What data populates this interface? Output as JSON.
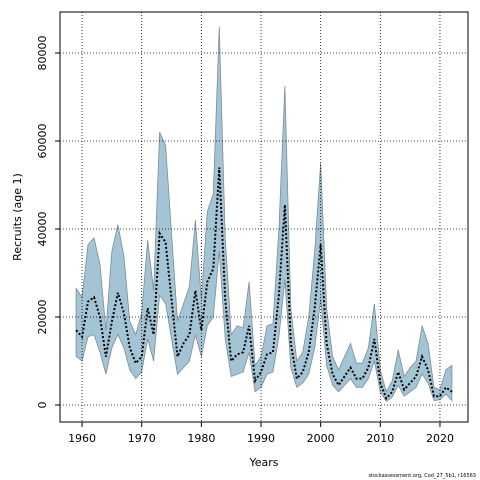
{
  "chart_data": {
    "type": "line",
    "xlabel": "Years",
    "ylabel": "Recruits (age 1)",
    "source": "stockassessment.org, Cod_27_5b1, r16563",
    "x": [
      1959,
      1960,
      1961,
      1962,
      1963,
      1964,
      1965,
      1966,
      1967,
      1968,
      1969,
      1970,
      1971,
      1972,
      1973,
      1974,
      1975,
      1976,
      1977,
      1978,
      1979,
      1980,
      1981,
      1982,
      1983,
      1984,
      1985,
      1986,
      1987,
      1988,
      1989,
      1990,
      1991,
      1992,
      1993,
      1994,
      1995,
      1996,
      1997,
      1998,
      1999,
      2000,
      2001,
      2002,
      2003,
      2004,
      2005,
      2006,
      2007,
      2008,
      2009,
      2010,
      2011,
      2012,
      2013,
      2014,
      2015,
      2016,
      2017,
      2018,
      2019,
      2020,
      2021,
      2022
    ],
    "series": [
      {
        "color": "#000000",
        "values": [
          17000,
          15500,
          23500,
          24500,
          20000,
          11000,
          19000,
          25500,
          21000,
          13000,
          9500,
          11000,
          22000,
          16000,
          39000,
          37000,
          24000,
          11000,
          14000,
          16000,
          26000,
          17000,
          28000,
          31000,
          54000,
          24000,
          10000,
          11500,
          12000,
          18000,
          5500,
          7500,
          11500,
          12000,
          25000,
          45500,
          14000,
          6000,
          7500,
          12000,
          22000,
          36500,
          14000,
          7000,
          4500,
          6500,
          8500,
          6000,
          6000,
          8500,
          15000,
          5000,
          1500,
          3000,
          7500,
          3500,
          5000,
          6500,
          11000,
          8000,
          2000,
          2000,
          4000,
          3000
        ]
      }
    ],
    "band": {
      "color": "#a3c4d4",
      "edge": "#7f8c94",
      "upper": [
        26500,
        24500,
        36500,
        38000,
        32000,
        17000,
        35000,
        41000,
        34000,
        19000,
        16000,
        21000,
        37500,
        26000,
        62000,
        59000,
        39000,
        19000,
        23000,
        27000,
        42000,
        24000,
        44000,
        48000,
        86000,
        38000,
        16000,
        18000,
        17500,
        28000,
        9000,
        11000,
        18000,
        18500,
        40000,
        72500,
        22000,
        10000,
        12000,
        20000,
        35000,
        55000,
        22000,
        11000,
        8000,
        11000,
        14000,
        9500,
        9500,
        13000,
        23000,
        8000,
        3000,
        5500,
        12500,
        6500,
        8500,
        10000,
        18000,
        14000,
        4000,
        3500,
        8000,
        9000
      ],
      "lower": [
        11000,
        10000,
        15500,
        16000,
        12000,
        7000,
        13000,
        16000,
        13000,
        8000,
        6000,
        7500,
        15000,
        10000,
        25000,
        23000,
        15000,
        7000,
        8500,
        10000,
        16000,
        11000,
        18000,
        20000,
        35000,
        15000,
        6500,
        7000,
        7500,
        12000,
        3000,
        4000,
        7000,
        7500,
        15500,
        28500,
        8500,
        4000,
        5000,
        7000,
        13000,
        24000,
        9000,
        4500,
        3000,
        4500,
        6000,
        4000,
        4000,
        6000,
        10000,
        3000,
        800,
        1800,
        4500,
        2000,
        3000,
        4000,
        7000,
        5000,
        1000,
        1200,
        2500,
        1000
      ]
    },
    "xlim": [
      1956.3,
      2024.7
    ],
    "ylim": [
      -3864,
      89318
    ],
    "xticks": [
      1960,
      1970,
      1980,
      1990,
      2000,
      2010,
      2020
    ],
    "yticks": [
      0,
      20000,
      40000,
      60000,
      80000
    ],
    "grid": true
  }
}
